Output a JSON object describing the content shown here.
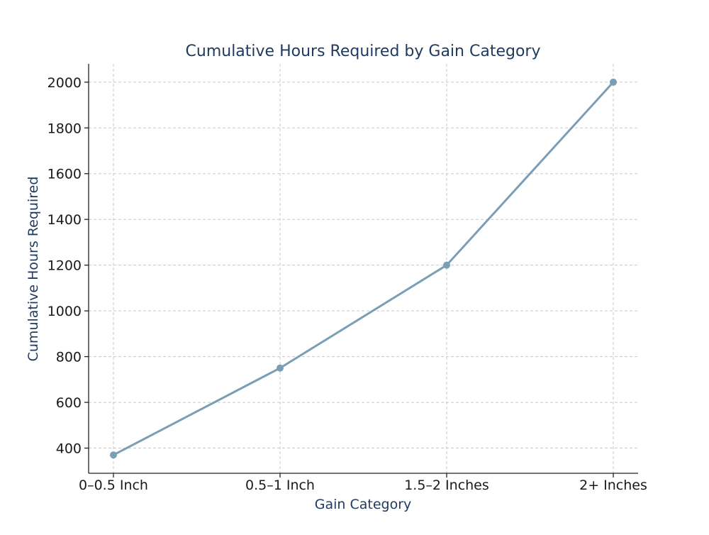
{
  "chart_data": {
    "type": "line",
    "title": "Cumulative Hours Required by Gain Category",
    "xlabel": "Gain Category",
    "ylabel": "Cumulative Hours Required",
    "categories": [
      "0–0.5 Inch",
      "0.5–1 Inch",
      "1.5–2 Inches",
      "2+ Inches"
    ],
    "series": [
      {
        "values": [
          370,
          750,
          1200,
          2000
        ]
      }
    ],
    "ylim": [
      290,
      2080
    ],
    "yticks": [
      400,
      600,
      800,
      1000,
      1200,
      1400,
      1600,
      1800,
      2000
    ],
    "grid": true,
    "legend": "none",
    "colors": {
      "line": "#7a9eb5",
      "title": "#1f3a5f",
      "axis_label": "#1f3a5f"
    }
  }
}
